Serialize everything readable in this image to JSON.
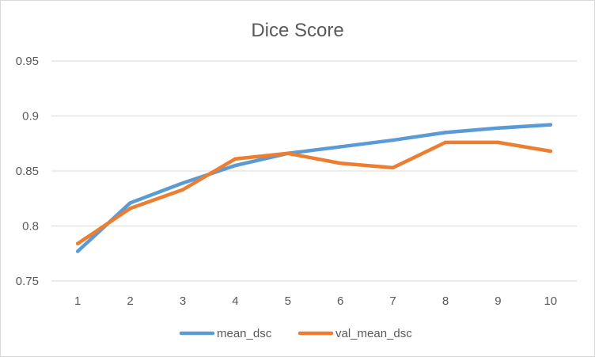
{
  "chart_data": {
    "type": "line",
    "title": "Dice Score",
    "xlabel": "",
    "ylabel": "",
    "categories": [
      "1",
      "2",
      "3",
      "4",
      "5",
      "6",
      "7",
      "8",
      "9",
      "10"
    ],
    "ylim": [
      0.75,
      0.95
    ],
    "yticks": [
      "0.75",
      "0.8",
      "0.85",
      "0.9",
      "0.95"
    ],
    "grid": true,
    "legend": "bottom",
    "series": [
      {
        "name": "mean_dsc",
        "color": "#5B9BD5",
        "values": [
          0.777,
          0.821,
          0.839,
          0.855,
          0.866,
          0.872,
          0.878,
          0.885,
          0.889,
          0.892
        ]
      },
      {
        "name": "val_mean_dsc",
        "color": "#ED7D31",
        "values": [
          0.784,
          0.816,
          0.833,
          0.861,
          0.866,
          0.857,
          0.853,
          0.876,
          0.876,
          0.868
        ]
      }
    ]
  }
}
